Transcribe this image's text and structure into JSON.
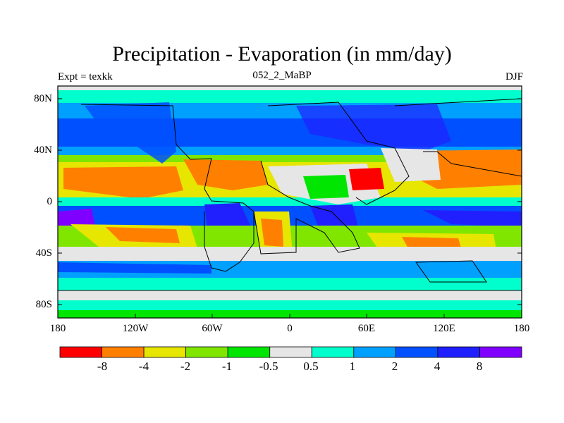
{
  "title": "Precipitation - Evaporation (in mm/day)",
  "subtitle_left": "Expt = texkk",
  "subtitle_center": "052_2_MaBP",
  "subtitle_right": "DJF",
  "lat_ticks": [
    "80N",
    "40N",
    "0",
    "40S",
    "80S"
  ],
  "lon_ticks": [
    "180",
    "120W",
    "60W",
    "0",
    "60E",
    "120E",
    "180"
  ],
  "colorbar": {
    "labels": [
      "-8",
      "-4",
      "-2",
      "-1",
      "-0.5",
      "0.5",
      "1",
      "2",
      "4",
      "8"
    ],
    "colors": [
      "#ff0000",
      "#ff8000",
      "#e6e600",
      "#80e600",
      "#00e600",
      "#e6e6e6",
      "#00ffcc",
      "#00a0ff",
      "#0050ff",
      "#2020ff",
      "#8000ff"
    ]
  }
}
